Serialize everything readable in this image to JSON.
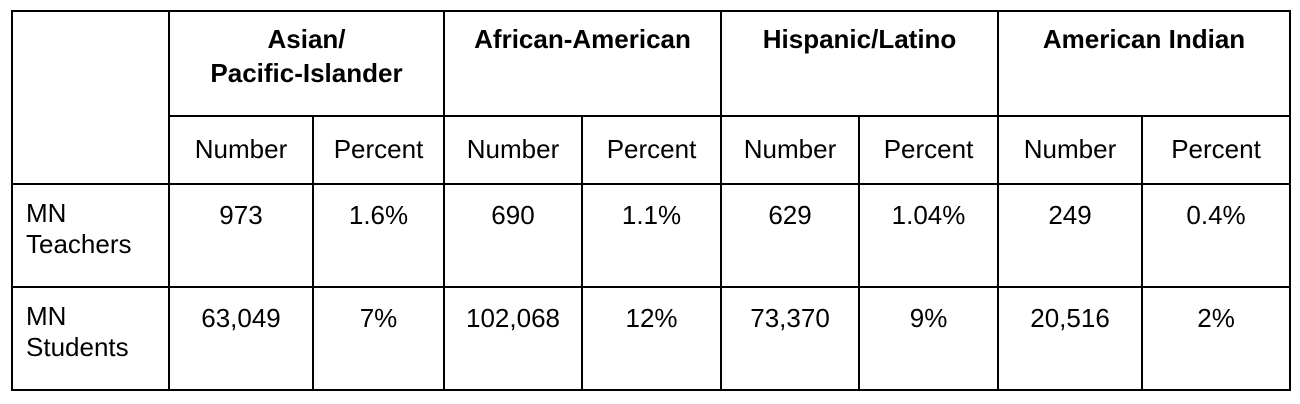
{
  "table": {
    "groups": [
      {
        "label": "Asian/\nPacific-Islander"
      },
      {
        "label": "African-American"
      },
      {
        "label": "Hispanic/Latino"
      },
      {
        "label": "American Indian"
      }
    ],
    "sub_headers": [
      "Number",
      "Percent",
      "Number",
      "Percent",
      "Number",
      "Percent",
      "Number",
      "Percent"
    ],
    "rows": [
      {
        "label_line1": "MN",
        "label_line2": "Teachers",
        "cells": [
          "973",
          "1.6%",
          "690",
          "1.1%",
          "629",
          "1.04%",
          "249",
          "0.4%"
        ]
      },
      {
        "label_line1": "MN",
        "label_line2": "Students",
        "cells": [
          "63,049",
          "7%",
          "102,068",
          "12%",
          "73,370",
          "9%",
          "20,516",
          "2%"
        ]
      }
    ]
  }
}
